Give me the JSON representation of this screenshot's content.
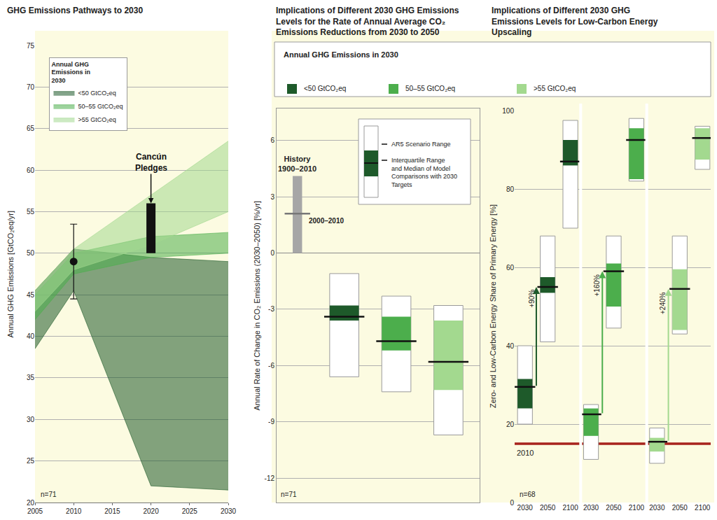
{
  "chart_data": [
    {
      "type": "area",
      "title": "GHG Emissions Pathways to 2030",
      "y_label": "Annual GHG Emissions [GtCO₂eq/yr]",
      "x": [
        2005,
        2010,
        2020,
        2030
      ],
      "xlim": [
        2005,
        2030
      ],
      "xticks": [
        2005,
        2010,
        2015,
        2020,
        2025,
        2030
      ],
      "ylim": [
        20,
        75
      ],
      "yticks": [
        20,
        25,
        30,
        35,
        40,
        45,
        50,
        55,
        60,
        65,
        70,
        75
      ],
      "grid": true,
      "legend": "top left",
      "legend_title": "Annual GHG Emissions in 2030",
      "series": [
        {
          "name": "<50 GtCO₂eq",
          "color": "#1e5a2a",
          "lower": [
            38.5,
            45.5,
            22,
            21.5
          ],
          "upper": [
            45.5,
            50.5,
            49.5,
            49
          ]
        },
        {
          "name": "50–55 GtCO₂eq",
          "color": "#4cae4c",
          "lower": [
            42,
            47.5,
            49.5,
            50
          ],
          "upper": [
            45,
            50,
            52,
            52.5
          ]
        },
        {
          "name": ">55 GtCO₂eq",
          "color": "#a3d98f",
          "lower": [
            43,
            48,
            51,
            55
          ],
          "upper": [
            45.5,
            50.5,
            57,
            63.5
          ]
        }
      ],
      "historical": {
        "x": 2010,
        "value": 49,
        "error_low": 44.5,
        "error_high": 53.5
      },
      "pledges": {
        "label": "Cancún Pledges",
        "x": 2020,
        "low": 50,
        "high": 56
      },
      "annotations": [
        "n=71"
      ]
    },
    {
      "type": "box",
      "title": "Implications of Different 2030 GHG Emissions Levels for the Rate of Annual Average CO₂ Emissions Reductions from 2030 to 2050",
      "y_label": "Annual Rate of Change in CO₂ Emissions (2030–2050) [%/yr]",
      "ylim": [
        -13.3,
        7.7
      ],
      "yticks": [
        -12,
        -9,
        -6,
        -3,
        0,
        3,
        6
      ],
      "grid": true,
      "tick_labels": "y",
      "legend_title": "Annual GHG Emissions in 2030",
      "series": [
        {
          "name": "<50 GtCO₂eq",
          "color": "#1e5a2a",
          "range": [
            -6.6,
            -1.1
          ],
          "iqr": [
            -3.6,
            -2.8
          ],
          "median": -3.4
        },
        {
          "name": "50–55 GtCO₂eq",
          "color": "#4cae4c",
          "range": [
            -7.4,
            -2.3
          ],
          "iqr": [
            -5.2,
            -3.4
          ],
          "median": -4.7
        },
        {
          "name": ">55 GtCO₂eq",
          "color": "#a3d98f",
          "range": [
            -9.7,
            -2.8
          ],
          "iqr": [
            -7.3,
            -3.6
          ],
          "median": -5.8
        }
      ],
      "history": {
        "label": "History 1900–2010",
        "range": [
          0,
          4.1
        ],
        "median_label": "2000–2010",
        "median": 2.1,
        "color": "#a6a6a6"
      },
      "key": {
        "range_label": "AR5 Scenario Range",
        "iqr_label": "Interquartile Range and Median of Model Comparisons with 2030 Targets"
      },
      "annotations": [
        "n=71"
      ]
    },
    {
      "type": "box",
      "title": "Implications of Different 2030 GHG Emissions Levels for Low-Carbon Energy Upscaling",
      "y_label": "Zero- and Low-Carbon Energy Share of Primary Energy [%]",
      "ylim": [
        0,
        100
      ],
      "yticks": [
        0,
        20,
        40,
        60,
        80,
        100
      ],
      "grid": true,
      "categories": [
        "2030",
        "2050",
        "2100"
      ],
      "series": [
        {
          "color": "#1e5a2a",
          "label": "+90%",
          "boxes": [
            {
              "range": [
                20,
                40
              ],
              "iqr": [
                24,
                31.5
              ],
              "median": 29.5
            },
            {
              "range": [
                41,
                68
              ],
              "iqr": [
                53.5,
                57.5
              ],
              "median": 55
            },
            {
              "range": [
                70,
                97.5
              ],
              "iqr": [
                86,
                92.5
              ],
              "median": 87
            }
          ]
        },
        {
          "color": "#4cae4c",
          "label": "+160%",
          "boxes": [
            {
              "range": [
                11,
                25
              ],
              "iqr": [
                17,
                24
              ],
              "median": 22.5
            },
            {
              "range": [
                44.5,
                68
              ],
              "iqr": [
                50,
                61
              ],
              "median": 59
            },
            {
              "range": [
                82,
                98
              ],
              "iqr": [
                82.5,
                95.5
              ],
              "median": 92.5
            }
          ]
        },
        {
          "color": "#a3d98f",
          "label": "+240%",
          "boxes": [
            {
              "range": [
                10,
                19
              ],
              "iqr": [
                13,
                16.5
              ],
              "median": 15.5
            },
            {
              "range": [
                43,
                68
              ],
              "iqr": [
                44,
                59.5
              ],
              "median": 54.5
            },
            {
              "range": [
                85,
                96
              ],
              "iqr": [
                87.5,
                95.5
              ],
              "median": 93
            }
          ]
        }
      ],
      "reference": {
        "label": "2010",
        "value": 15,
        "color": "#a8231c"
      },
      "annotations": [
        "n=68"
      ]
    }
  ]
}
